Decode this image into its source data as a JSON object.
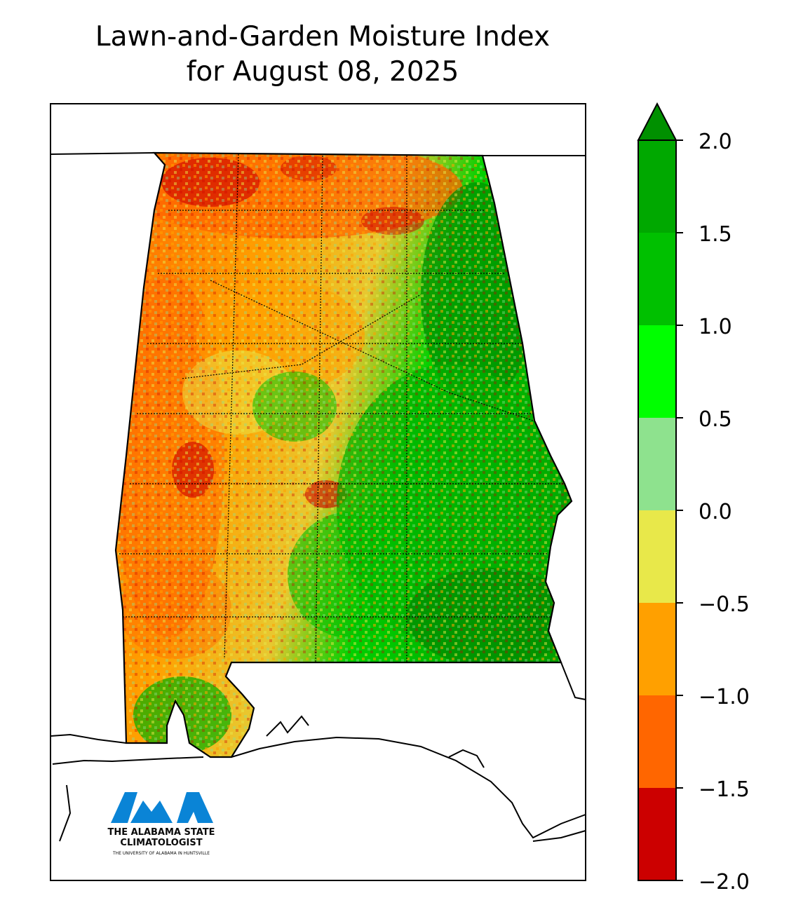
{
  "title_line1": "Lawn-and-Garden Moisture Index",
  "title_line2": "for August 08, 2025",
  "colorbar": {
    "min": -2.0,
    "max": 2.0,
    "extend": "max",
    "ticks": [
      "2.0",
      "1.5",
      "1.0",
      "0.5",
      "0.0",
      "−0.5",
      "−1.0",
      "−1.5",
      "−2.0"
    ],
    "bins": [
      {
        "from": -2.0,
        "to": -1.5,
        "color": "#cc0000"
      },
      {
        "from": -1.5,
        "to": -1.0,
        "color": "#ff6600"
      },
      {
        "from": -1.0,
        "to": -0.5,
        "color": "#ffa000"
      },
      {
        "from": -0.5,
        "to": 0.0,
        "color": "#e8e84a"
      },
      {
        "from": 0.0,
        "to": 0.5,
        "color": "#8ee28e"
      },
      {
        "from": 0.5,
        "to": 1.0,
        "color": "#00ff00"
      },
      {
        "from": 1.0,
        "to": 1.5,
        "color": "#00c000"
      },
      {
        "from": 1.5,
        "to": 2.0,
        "color": "#00a800"
      }
    ],
    "extend_color": "#009000"
  },
  "logo": {
    "line1": "THE ALABAMA STATE",
    "line2": "CLIMATOLOGIST",
    "line3": "THE UNIVERSITY OF ALABAMA IN HUNTSVILLE",
    "color": "#0a84d6"
  }
}
